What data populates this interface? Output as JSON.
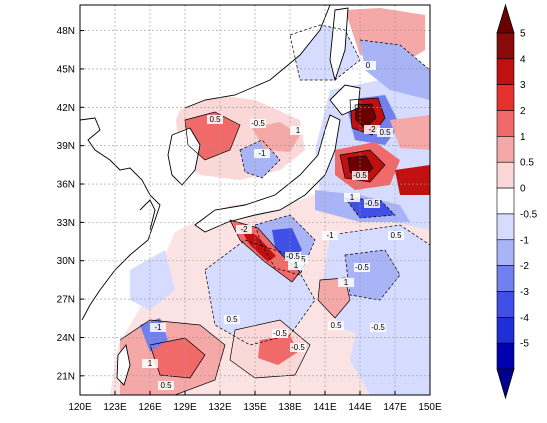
{
  "map": {
    "lon_ticks": [
      "120E",
      "123E",
      "126E",
      "129E",
      "132E",
      "135E",
      "138E",
      "141E",
      "144E",
      "147E",
      "150E"
    ],
    "lat_ticks": [
      "21N",
      "24N",
      "27N",
      "30N",
      "33N",
      "36N",
      "39N",
      "42N",
      "45N",
      "48N"
    ],
    "lon_range": [
      120,
      150
    ],
    "lat_range": [
      19.5,
      50
    ],
    "grid": true,
    "contour_labels": [
      "0.5",
      "-0.5",
      "1",
      "-1",
      "0",
      "-2",
      "0.5",
      "-0.5",
      "1",
      "-0.5",
      "-2",
      "0.5",
      "-0.5",
      "1",
      "-1",
      "-0.5",
      "0.5",
      "1",
      "0.5",
      "-0.5",
      "-0.5",
      "0.5",
      "-0.5",
      "1",
      "-1",
      "0.5"
    ]
  },
  "colorbar": {
    "labels": [
      "5",
      "4",
      "3",
      "2",
      "1",
      "0.5",
      "0",
      "-0.5",
      "-1",
      "-2",
      "-3",
      "-4",
      "-5"
    ],
    "colors": [
      "#8a0a0a",
      "#c01010",
      "#e63030",
      "#f06a6a",
      "#f5a8a8",
      "#fbd8d8",
      "#ffffff",
      "#d6dcff",
      "#a8b4f5",
      "#7080ee",
      "#4050e6",
      "#1e2fd8",
      "#0000b0"
    ],
    "arrow_top_color": "#6a0000",
    "arrow_bottom_color": "#000090"
  }
}
